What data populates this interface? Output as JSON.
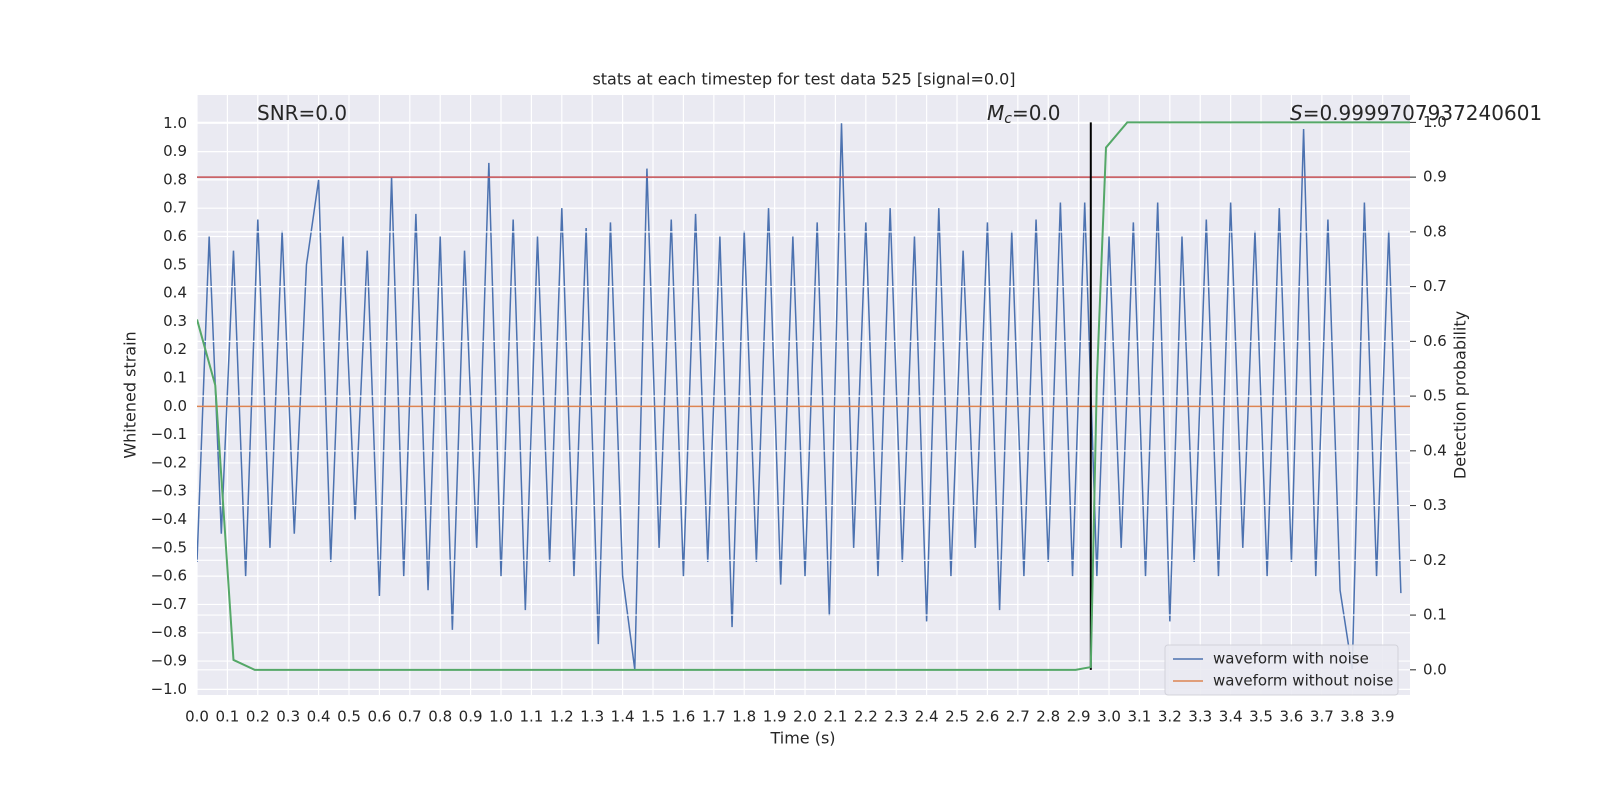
{
  "chart_data": {
    "type": "line",
    "title": "stats at each timestep for test data 525 [signal=0.0]",
    "x_label": "Time (s)",
    "y_label": "Whitened strain",
    "y2_label": "Detection probability",
    "annotations": [
      {
        "text": "SNR=0.0"
      },
      {
        "symbol": "M",
        "subscript": "c",
        "text": "=0.0"
      },
      {
        "symbol": "S",
        "text": "=0.9999707937240601"
      }
    ],
    "xlim": [
      0,
      3.99
    ],
    "ylim": [
      -1.02,
      1.1
    ],
    "y2lim": [
      -0.046,
      1.05
    ],
    "xticks": [
      {
        "value": 0,
        "label": "0.0"
      },
      0.1,
      0.2,
      0.3,
      0.4,
      0.5,
      0.6,
      0.7,
      0.8,
      0.9,
      {
        "value": 1,
        "label": "1.0"
      },
      1.1,
      1.2,
      1.3,
      1.4,
      1.5,
      1.6,
      1.7,
      1.8,
      1.9,
      {
        "value": 2,
        "label": "2.0"
      },
      2.1,
      2.2,
      2.3,
      2.4,
      2.5,
      2.6,
      2.7,
      2.8,
      2.9,
      {
        "value": 3,
        "label": "3.0"
      },
      3.1,
      3.2,
      3.3,
      3.4,
      3.5,
      3.6,
      3.7,
      3.8,
      3.9
    ],
    "yticks": [
      {
        "value": -1,
        "label": "−1.0"
      },
      {
        "value": -0.9,
        "label": "−0.9"
      },
      {
        "value": -0.8,
        "label": "−0.8"
      },
      {
        "value": -0.7,
        "label": "−0.7"
      },
      {
        "value": -0.6,
        "label": "−0.6"
      },
      {
        "value": -0.5,
        "label": "−0.5"
      },
      {
        "value": -0.4,
        "label": "−0.4"
      },
      {
        "value": -0.3,
        "label": "−0.3"
      },
      {
        "value": -0.2,
        "label": "−0.2"
      },
      {
        "value": -0.1,
        "label": "−0.1"
      },
      {
        "value": 0,
        "label": "0.0"
      },
      0.1,
      0.2,
      0.3,
      0.4,
      0.5,
      0.6,
      0.7,
      0.8,
      0.9,
      {
        "value": 1,
        "label": "1.0"
      }
    ],
    "y2ticks": [
      {
        "value": 0,
        "label": "0.0"
      },
      0.1,
      0.2,
      0.3,
      0.4,
      0.5,
      0.6,
      0.7,
      0.8,
      0.9,
      {
        "value": 1,
        "label": "1.0"
      }
    ],
    "grid": true,
    "y2grid": true,
    "legend": "lower right",
    "background": "#eaeaf2",
    "series": [
      {
        "name": "waveform with noise",
        "color": "#4c72b0",
        "x": [
          0,
          0.04,
          0.08,
          0.12,
          0.16,
          0.2,
          0.24,
          0.28,
          0.32,
          0.36,
          0.4,
          0.44,
          0.48,
          0.52,
          0.56,
          0.6,
          0.64,
          0.68,
          0.72,
          0.76,
          0.8,
          0.84,
          0.88,
          0.92,
          0.96,
          1,
          1.04,
          1.08,
          1.12,
          1.16,
          1.2,
          1.24,
          1.28,
          1.32,
          1.36,
          1.4,
          1.44,
          1.48,
          1.52,
          1.56,
          1.6,
          1.64,
          1.68,
          1.72,
          1.76,
          1.8,
          1.84,
          1.88,
          1.92,
          1.96,
          2,
          2.04,
          2.08,
          2.12,
          2.16,
          2.2,
          2.24,
          2.28,
          2.32,
          2.36,
          2.4,
          2.44,
          2.48,
          2.52,
          2.56,
          2.6,
          2.64,
          2.68,
          2.72,
          2.76,
          2.8,
          2.84,
          2.88,
          2.92,
          2.96,
          3,
          3.04,
          3.08,
          3.12,
          3.16,
          3.2,
          3.24,
          3.28,
          3.32,
          3.36,
          3.4,
          3.44,
          3.48,
          3.52,
          3.56,
          3.6,
          3.64,
          3.68,
          3.72,
          3.76,
          3.8,
          3.84,
          3.88,
          3.92,
          3.96
        ],
        "values": [
          -0.55,
          0.6,
          -0.45,
          0.55,
          -0.6,
          0.66,
          -0.5,
          0.62,
          -0.45,
          0.5,
          0.8,
          -0.55,
          0.6,
          -0.4,
          0.55,
          -0.67,
          0.81,
          -0.6,
          0.68,
          -0.65,
          0.6,
          -0.79,
          0.55,
          -0.5,
          0.86,
          -0.6,
          0.66,
          -0.72,
          0.6,
          -0.55,
          0.7,
          -0.6,
          0.63,
          -0.84,
          0.65,
          -0.6,
          -0.93,
          0.84,
          -0.5,
          0.66,
          -0.6,
          0.68,
          -0.55,
          0.6,
          -0.78,
          0.62,
          -0.55,
          0.7,
          -0.63,
          0.6,
          -0.6,
          0.65,
          -0.74,
          1.0,
          -0.5,
          0.65,
          -0.6,
          0.7,
          -0.55,
          0.6,
          -0.76,
          0.7,
          -0.6,
          0.55,
          -0.5,
          0.65,
          -0.72,
          0.62,
          -0.6,
          0.66,
          -0.55,
          0.72,
          -0.6,
          0.72,
          -0.6,
          0.6,
          -0.5,
          0.65,
          -0.6,
          0.72,
          -0.76,
          0.6,
          -0.55,
          0.66,
          -0.6,
          0.72,
          -0.5,
          0.62,
          -0.6,
          0.7,
          -0.55,
          0.98,
          -0.6,
          0.66,
          -0.65,
          -0.93,
          0.72,
          -0.6,
          0.62,
          -0.66
        ]
      },
      {
        "name": "waveform without noise",
        "color": "#dd8452",
        "x": [
          0,
          3.99
        ],
        "values": [
          0,
          0
        ]
      },
      {
        "color": "#55a868",
        "axis": "y2",
        "x": [
          0,
          0.06,
          0.12,
          0.19,
          2.89,
          2.94,
          2.96,
          2.99,
          3.06,
          3.99
        ],
        "values": [
          0.64,
          0.52,
          0.018,
          0,
          0,
          0.005,
          0.53,
          0.954,
          1,
          1
        ]
      }
    ],
    "threshold": {
      "value": 0.9,
      "axis": "y2",
      "color": "#c44e52"
    },
    "vline": {
      "x": 2.94,
      "y2": [
        0,
        1
      ],
      "color": "#000000"
    }
  }
}
